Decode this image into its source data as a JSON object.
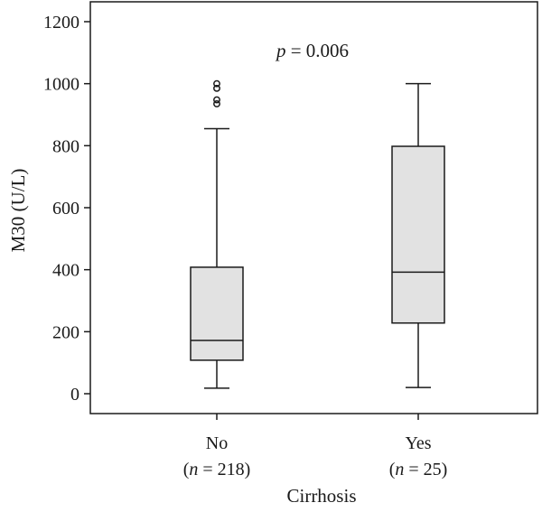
{
  "chart_data": {
    "type": "box",
    "xlabel": "Cirrhosis",
    "ylabel": "M30 (U/L)",
    "ylim": [
      0,
      1200
    ],
    "yticks": [
      0,
      200,
      400,
      600,
      800,
      1000,
      1200
    ],
    "annotation": {
      "p_symbol": "p",
      "p_text": " = 0.006"
    },
    "groups": [
      {
        "category": "No",
        "n_label": "(n = 218)",
        "n_symbol": "n",
        "n_value": "218",
        "whisker_low": 18,
        "q1": 108,
        "median": 172,
        "q3": 408,
        "whisker_high": 855,
        "outliers": [
          935,
          948,
          985,
          1000
        ]
      },
      {
        "category": "Yes",
        "n_label": "(n = 25)",
        "n_symbol": "n",
        "n_value": "25",
        "whisker_low": 20,
        "q1": 228,
        "median": 392,
        "q3": 798,
        "whisker_high": 1000,
        "outliers": []
      }
    ],
    "colors": {
      "box_fill": "#e2e2e2",
      "stroke": "#1a1a1a"
    }
  }
}
